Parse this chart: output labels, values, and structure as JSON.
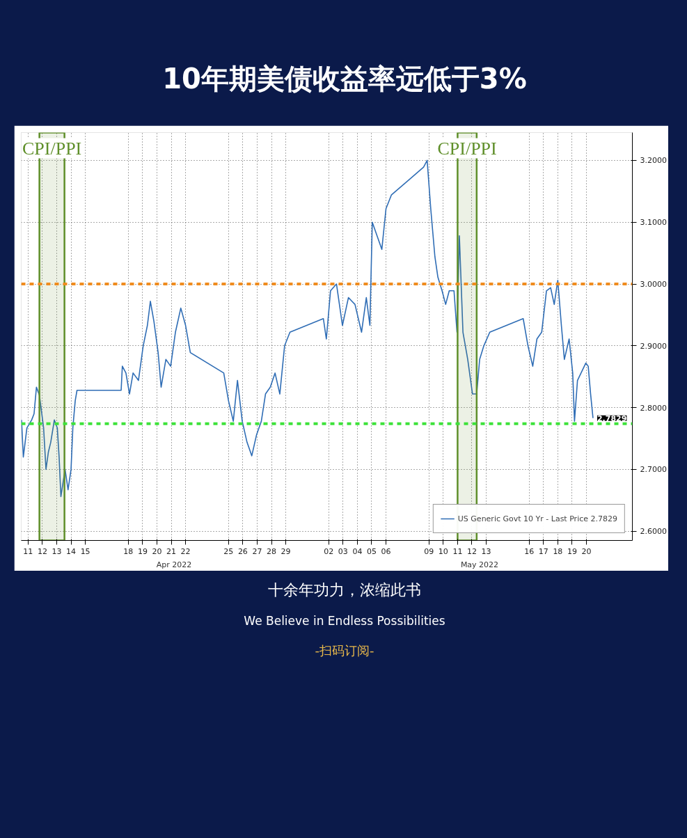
{
  "chart_data": {
    "type": "line",
    "title": "10年期美债收益率远低于3%",
    "x": [
      "2022-04-11T01:00",
      "2022-04-11T04:00",
      "2022-04-11T10:00",
      "2022-04-11T18:00",
      "2022-04-11T22:00",
      "2022-04-12T02:00",
      "2022-04-12T07:00",
      "2022-04-12T14:00",
      "2022-04-12T18:00",
      "2022-04-12T22:00",
      "2022-04-13T02:00",
      "2022-04-13T08:00",
      "2022-04-13T13:00",
      "2022-04-13T16:00",
      "2022-04-13T19:00",
      "2022-04-14T02:00",
      "2022-04-14T07:00",
      "2022-04-14T12:00",
      "2022-04-14T15:00",
      "2022-04-14T19:00",
      "2022-04-14T22:00",
      "2022-04-15T07:00",
      "2022-04-15T16:00",
      "2022-04-18T00:00",
      "2022-04-18T02:00",
      "2022-04-18T08:00",
      "2022-04-18T14:00",
      "2022-04-18T20:00",
      "2022-04-19T05:00",
      "2022-04-19T13:00",
      "2022-04-19T20:00",
      "2022-04-20T01:00",
      "2022-04-20T07:00",
      "2022-04-20T14:00",
      "2022-04-20T19:00",
      "2022-04-21T03:00",
      "2022-04-21T11:00",
      "2022-04-21T19:00",
      "2022-04-22T04:00",
      "2022-04-22T12:00",
      "2022-04-22T20:00",
      "2022-04-25T04:00",
      "2022-04-25T12:00",
      "2022-04-25T20:00",
      "2022-04-26T03:00",
      "2022-04-26T11:00",
      "2022-04-26T19:00",
      "2022-04-27T03:00",
      "2022-04-27T11:00",
      "2022-04-27T19:00",
      "2022-04-28T02:00",
      "2022-04-28T10:00",
      "2022-04-28T18:00",
      "2022-04-29T02:00",
      "2022-04-29T10:00",
      "2022-04-29T19:00",
      "2022-05-02T03:00",
      "2022-05-02T08:00",
      "2022-05-02T15:00",
      "2022-05-03T01:00",
      "2022-05-03T11:00",
      "2022-05-03T21:00",
      "2022-05-04T08:00",
      "2022-05-04T19:00",
      "2022-05-05T03:00",
      "2022-05-05T09:00",
      "2022-05-05T13:00",
      "2022-05-05T21:00",
      "2022-05-06T05:00",
      "2022-05-06T12:00",
      "2022-05-06T21:00",
      "2022-05-09T03:00",
      "2022-05-09T09:00",
      "2022-05-09T15:00",
      "2022-05-09T22:00",
      "2022-05-10T03:00",
      "2022-05-10T10:00",
      "2022-05-10T16:00",
      "2022-05-10T22:00",
      "2022-05-11T06:00",
      "2022-05-11T11:00",
      "2022-05-11T15:00",
      "2022-05-11T21:00",
      "2022-05-12T05:00",
      "2022-05-12T13:00",
      "2022-05-12T20:00",
      "2022-05-13T01:00",
      "2022-05-13T08:00",
      "2022-05-13T18:00",
      "2022-05-16T02:00",
      "2022-05-16T10:00",
      "2022-05-16T18:00",
      "2022-05-17T01:00",
      "2022-05-17T09:00",
      "2022-05-17T17:00",
      "2022-05-18T00:00",
      "2022-05-18T06:00",
      "2022-05-18T12:00",
      "2022-05-18T18:00",
      "2022-05-18T23:00",
      "2022-05-19T07:00",
      "2022-05-19T13:00",
      "2022-05-19T16:00",
      "2022-05-19T21:00",
      "2022-05-20T03:00",
      "2022-05-20T11:00",
      "2022-05-20T15:00",
      "2022-05-20T19:00",
      "2022-05-20T23:00"
    ],
    "series": [
      {
        "name": "US Generic Govt 10 Yr - Last Price 2.7829",
        "color": "#2f6db5",
        "values": [
          2.78,
          2.72,
          2.767,
          2.78,
          2.79,
          2.833,
          2.82,
          2.767,
          2.7,
          2.728,
          2.744,
          2.78,
          2.767,
          2.72,
          2.656,
          2.7,
          2.667,
          2.7,
          2.767,
          2.811,
          2.828,
          2.828,
          2.828,
          2.828,
          2.867,
          2.856,
          2.822,
          2.856,
          2.844,
          2.9,
          2.933,
          2.972,
          2.939,
          2.889,
          2.833,
          2.878,
          2.867,
          2.922,
          2.961,
          2.933,
          2.889,
          2.856,
          2.811,
          2.778,
          2.844,
          2.778,
          2.744,
          2.722,
          2.756,
          2.778,
          2.822,
          2.833,
          2.856,
          2.822,
          2.9,
          2.922,
          2.944,
          2.911,
          2.989,
          3.0,
          2.933,
          2.978,
          2.967,
          2.922,
          2.978,
          2.933,
          3.1,
          3.078,
          3.056,
          3.122,
          3.144,
          3.189,
          3.2,
          3.122,
          3.044,
          3.011,
          2.989,
          2.967,
          2.989,
          2.989,
          2.922,
          3.078,
          2.922,
          2.878,
          2.822,
          2.822,
          2.878,
          2.9,
          2.922,
          2.944,
          2.9,
          2.867,
          2.911,
          2.922,
          2.989,
          2.994,
          2.967,
          3.006,
          2.933,
          2.878,
          2.911,
          2.856,
          2.778,
          2.844,
          2.856,
          2.872,
          2.867,
          2.822,
          2.783
        ]
      }
    ],
    "xlim": [
      "2022-04-11T00:30",
      "2022-05-23T17:00"
    ],
    "xticks": [
      {
        "value": "2022-04-11T12:00",
        "label": "11"
      },
      {
        "value": "2022-04-12T12:00",
        "label": "12"
      },
      {
        "value": "2022-04-13T12:00",
        "label": "13"
      },
      {
        "value": "2022-04-14T12:00",
        "label": "14"
      },
      {
        "value": "2022-04-15T12:00",
        "label": "15"
      },
      {
        "value": "2022-04-18T12:00",
        "label": "18"
      },
      {
        "value": "2022-04-19T12:00",
        "label": "19"
      },
      {
        "value": "2022-04-20T12:00",
        "label": "20"
      },
      {
        "value": "2022-04-21T12:00",
        "label": "21"
      },
      {
        "value": "2022-04-22T12:00",
        "label": "22"
      },
      {
        "value": "2022-04-25T12:00",
        "label": "25"
      },
      {
        "value": "2022-04-26T12:00",
        "label": "26"
      },
      {
        "value": "2022-04-27T12:00",
        "label": "27"
      },
      {
        "value": "2022-04-28T12:00",
        "label": "28"
      },
      {
        "value": "2022-04-29T12:00",
        "label": "29"
      },
      {
        "value": "2022-05-02T12:00",
        "label": "02"
      },
      {
        "value": "2022-05-03T12:00",
        "label": "03"
      },
      {
        "value": "2022-05-04T12:00",
        "label": "04"
      },
      {
        "value": "2022-05-05T12:00",
        "label": "05"
      },
      {
        "value": "2022-05-06T12:00",
        "label": "06"
      },
      {
        "value": "2022-05-09T12:00",
        "label": "09"
      },
      {
        "value": "2022-05-10T12:00",
        "label": "10"
      },
      {
        "value": "2022-05-11T12:00",
        "label": "11"
      },
      {
        "value": "2022-05-12T12:00",
        "label": "12"
      },
      {
        "value": "2022-05-13T12:00",
        "label": "13"
      },
      {
        "value": "2022-05-16T12:00",
        "label": "16"
      },
      {
        "value": "2022-05-17T12:00",
        "label": "17"
      },
      {
        "value": "2022-05-18T12:00",
        "label": "18"
      },
      {
        "value": "2022-05-19T12:00",
        "label": "19"
      },
      {
        "value": "2022-05-20T12:00",
        "label": "20"
      }
    ],
    "ylim": [
      2.585,
      3.245
    ],
    "yticks": [
      {
        "value": 2.6,
        "label": "2.6000"
      },
      {
        "value": 2.7,
        "label": "2.7000"
      },
      {
        "value": 2.8,
        "label": "2.8000"
      },
      {
        "value": 2.9,
        "label": "2.9000"
      },
      {
        "value": 3.0,
        "label": "3.0000"
      },
      {
        "value": 3.1,
        "label": "3.1000"
      },
      {
        "value": 3.2,
        "label": "3.2000"
      }
    ],
    "ref_lines": [
      {
        "axis": "y",
        "value": 3.0,
        "color": "#f08c1e",
        "line_style": "dashed"
      },
      {
        "axis": "y",
        "value": 2.774,
        "color": "#3ee23a",
        "line_style": "dashed"
      }
    ],
    "bands": [
      {
        "axis": "x",
        "from": "2022-04-12T07:00",
        "to": "2022-04-14T01:00",
        "label": "CPI/PPI",
        "color": "#5f8f2a"
      },
      {
        "axis": "x",
        "from": "2022-05-11T12:00",
        "to": "2022-05-12T20:00",
        "label": "CPI/PPI",
        "color": "#5f8f2a"
      }
    ],
    "annotations": [
      "Apr 2022",
      "May 2022",
      {
        "text": "2.7829",
        "x": "2022-05-20T23:00",
        "y": 2.783
      },
      "十余年功力，浓缩此书",
      "We Believe in Endless Possibilities",
      "-扫码订阅-"
    ],
    "grid": true,
    "legend": "bottom right",
    "line_style": "solid",
    "marker": "none"
  }
}
